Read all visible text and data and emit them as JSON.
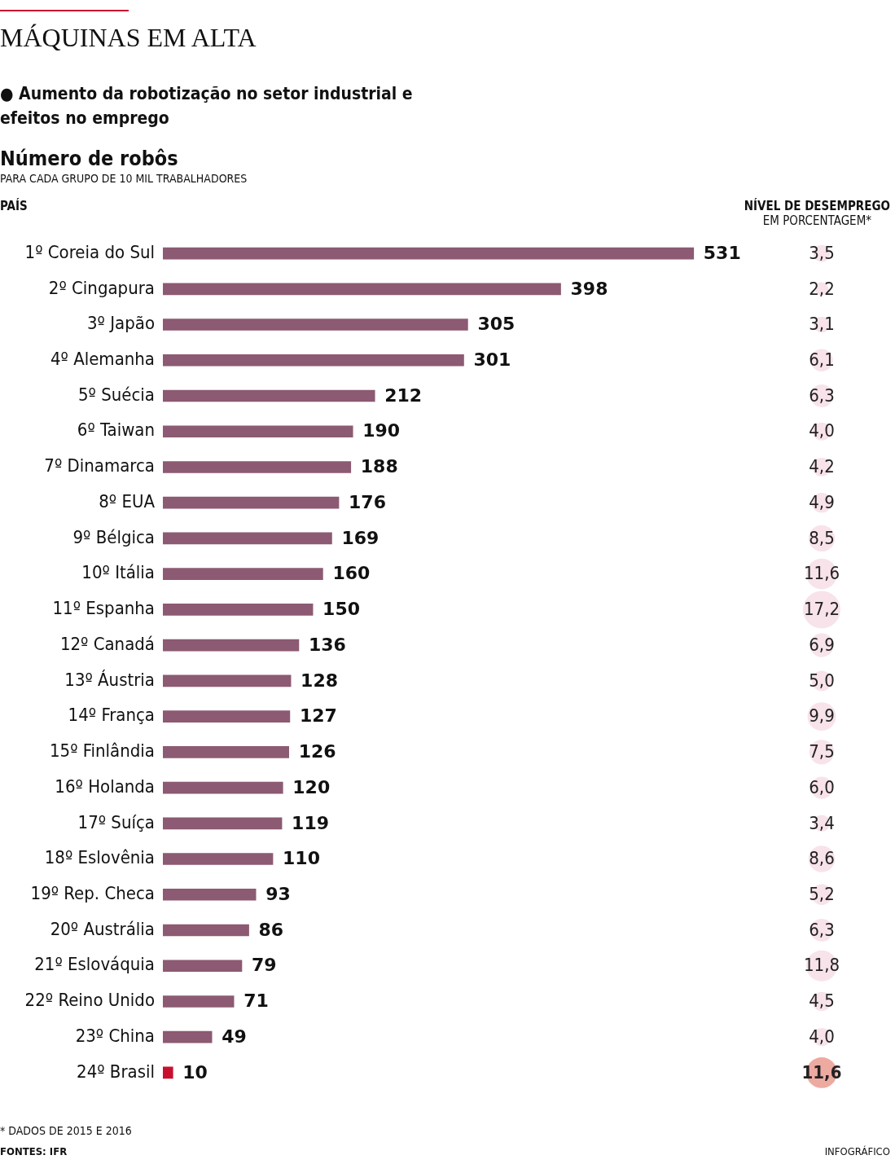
{
  "chart_data": [
    {
      "type": "bar",
      "orientation": "horizontal",
      "title": "Número de robôs",
      "subtitle": "PARA CADA GRUPO DE 10 MIL TRABALHADORES",
      "ylabel": "PAÍS",
      "categories": [
        "1º Coreia do Sul",
        "2º Cingapura",
        "3º Japão",
        "4º Alemanha",
        "5º Suécia",
        "6º Taiwan",
        "7º Dinamarca",
        "8º EUA",
        "9º Bélgica",
        "10º Itália",
        "11º Espanha",
        "12º Canadá",
        "13º Áustria",
        "14º França",
        "15º Finlândia",
        "16º Holanda",
        "17º Suíça",
        "18º Eslovênia",
        "19º Rep. Checa",
        "20º Austrália",
        "21º Eslováquia",
        "22º Reino Unido",
        "23º China",
        "24º Brasil"
      ],
      "values": [
        531,
        398,
        305,
        301,
        212,
        190,
        188,
        176,
        169,
        160,
        150,
        136,
        128,
        127,
        126,
        120,
        119,
        110,
        93,
        86,
        79,
        71,
        49,
        10
      ],
      "colors": [
        "#8c5a72",
        "#8c5a72",
        "#8c5a72",
        "#8c5a72",
        "#8c5a72",
        "#8c5a72",
        "#8c5a72",
        "#8c5a72",
        "#8c5a72",
        "#8c5a72",
        "#8c5a72",
        "#8c5a72",
        "#8c5a72",
        "#8c5a72",
        "#8c5a72",
        "#8c5a72",
        "#8c5a72",
        "#8c5a72",
        "#8c5a72",
        "#8c5a72",
        "#8c5a72",
        "#8c5a72",
        "#8c5a72",
        "#c8102e"
      ],
      "data_labels": true,
      "legend": false,
      "annotations": [
        "MÁQUINAS EM ALTA",
        "● Aumento da robotização no setor industrial e efeitos no emprego",
        "* DADOS DE 2015 E 2016",
        "FONTES: IFR",
        "INFOGRÁFICO"
      ]
    },
    {
      "type": "other",
      "title": "NÍVEL DE DESEMPREGO",
      "subtitle": "EM PORCENTAGEM*",
      "values": [
        3.5,
        2.2,
        3.1,
        6.1,
        6.3,
        4.0,
        4.2,
        4.9,
        8.5,
        11.6,
        17.2,
        6.9,
        5.0,
        9.9,
        7.5,
        6.0,
        3.4,
        8.6,
        5.2,
        6.3,
        11.8,
        4.5,
        4.0,
        11.6
      ],
      "value_labels": [
        "3,5",
        "2,2",
        "3,1",
        "6,1",
        "6,3",
        "4,0",
        "4,2",
        "4,9",
        "8,5",
        "11,6",
        "17,2",
        "6,9",
        "5,0",
        "9,9",
        "7,5",
        "6,0",
        "3,4",
        "8,6",
        "5,2",
        "6,3",
        "11,8",
        "4,5",
        "4,0",
        "11,6"
      ],
      "colors": [
        "#f5dce3",
        "#f5dce3",
        "#f5dce3",
        "#f5dce3",
        "#f5dce3",
        "#f5dce3",
        "#f5dce3",
        "#f5dce3",
        "#f5dce3",
        "#f5dce3",
        "#f5dce3",
        "#f5dce3",
        "#f5dce3",
        "#f5dce3",
        "#f5dce3",
        "#f5dce3",
        "#f5dce3",
        "#f5dce3",
        "#f5dce3",
        "#f5dce3",
        "#f5dce3",
        "#f5dce3",
        "#f5dce3",
        "#e8958a"
      ],
      "legend": false
    }
  ]
}
